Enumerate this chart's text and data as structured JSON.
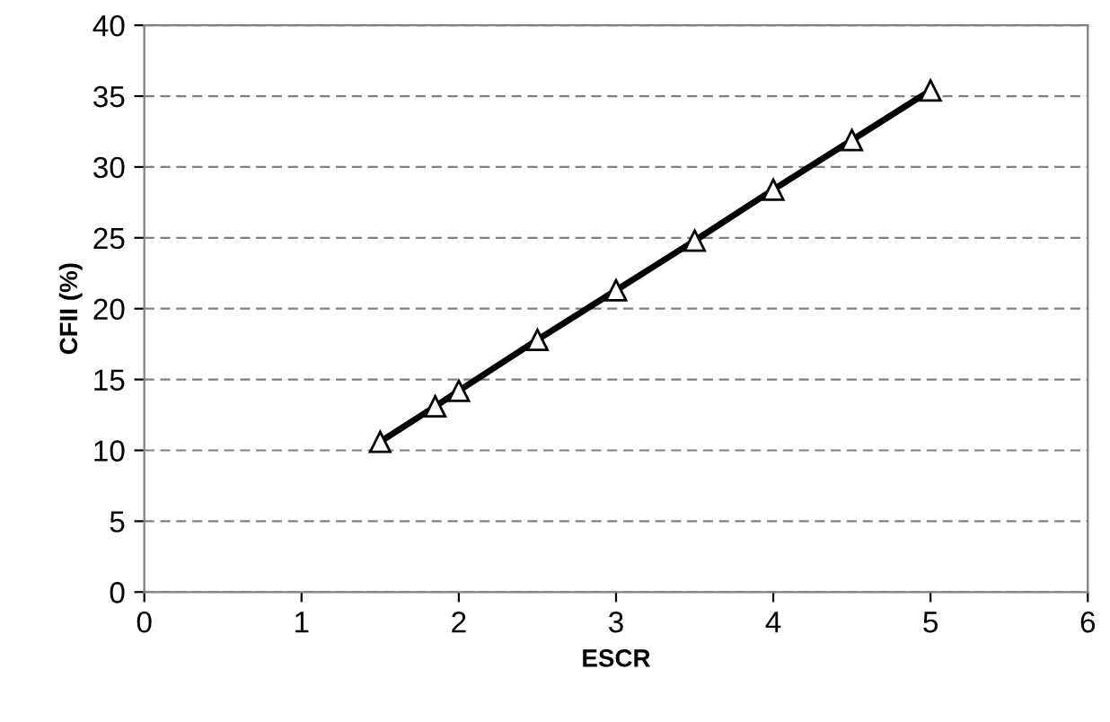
{
  "chart_data": {
    "type": "line",
    "xlabel": "ESCR",
    "ylabel": "CFII (%)",
    "x": [
      1.5,
      1.85,
      2,
      2.5,
      3,
      3.5,
      4,
      4.5,
      5
    ],
    "series": [
      {
        "color": "#000000",
        "values": [
          10.6,
          13.1,
          14.2,
          17.8,
          21.3,
          24.8,
          28.4,
          31.9,
          35.4
        ]
      }
    ],
    "xlim": [
      0,
      6
    ],
    "xticks": [
      0,
      1,
      2,
      3,
      4,
      5,
      6
    ],
    "ylim": [
      0,
      40
    ],
    "yticks": [
      0,
      5,
      10,
      15,
      20,
      25,
      30,
      35,
      40
    ],
    "grid": "y",
    "marker": "triangle",
    "line_style": "solid"
  }
}
